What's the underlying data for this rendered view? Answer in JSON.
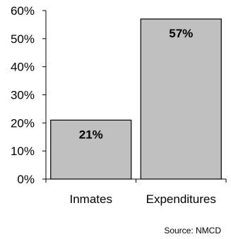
{
  "chart_data": {
    "type": "bar",
    "categories": [
      "Inmates",
      "Expenditures"
    ],
    "values": [
      21,
      57
    ],
    "data_labels": [
      "21%",
      "57%"
    ],
    "y_tick_labels": [
      "0%",
      "10%",
      "20%",
      "30%",
      "40%",
      "50%",
      "60%"
    ],
    "ylim": [
      0,
      60
    ],
    "y_tick_step": 10,
    "grid": false,
    "legend": "none",
    "bar_color": "#c0c0c0",
    "bar_edge_color": "#000000",
    "source": "Source: NMCD"
  }
}
